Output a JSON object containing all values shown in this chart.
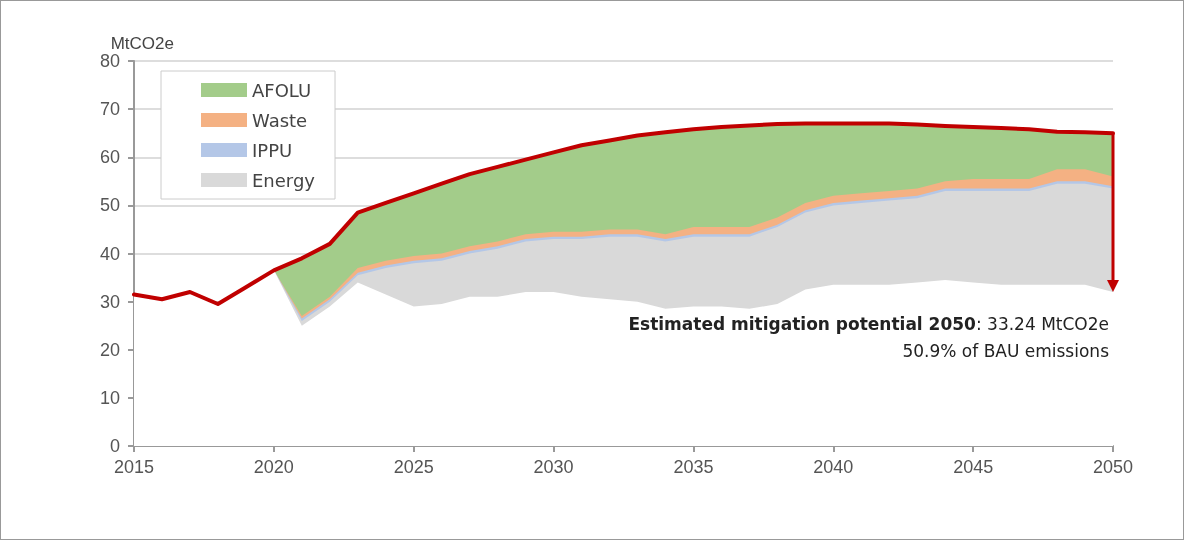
{
  "chart_data": {
    "type": "area",
    "ylabel": "MtCO2e",
    "stacked": true,
    "xlim": [
      2015,
      2050
    ],
    "xticks": [
      2015,
      2020,
      2025,
      2030,
      2035,
      2040,
      2045,
      2050
    ],
    "ylim": [
      0,
      80
    ],
    "yticks": [
      0,
      10,
      20,
      30,
      40,
      50,
      60,
      70,
      80
    ],
    "grid": "y",
    "legend": "top left",
    "x": [
      2015,
      2016,
      2017,
      2018,
      2019,
      2020,
      2021,
      2022,
      2023,
      2024,
      2025,
      2026,
      2027,
      2028,
      2029,
      2030,
      2031,
      2032,
      2033,
      2034,
      2035,
      2036,
      2037,
      2038,
      2039,
      2040,
      2041,
      2042,
      2043,
      2044,
      2045,
      2046,
      2047,
      2048,
      2049,
      2050
    ],
    "series": [
      {
        "color": "#ffffff",
        "values": [
          31.5,
          30.5,
          32,
          29.5,
          33,
          36.5,
          25,
          29,
          34,
          31.5,
          29,
          29.5,
          31,
          31,
          32,
          32,
          31,
          30.5,
          30,
          28.5,
          29,
          29,
          28.5,
          29.5,
          32.5,
          33.5,
          33.5,
          33.5,
          34,
          34.5,
          34,
          33.5,
          33.5,
          33.5,
          33.5,
          32
        ]
      },
      {
        "name": "Energy",
        "color": "#d9d9d9",
        "values": [
          0,
          0,
          0,
          0,
          0,
          0,
          1,
          1,
          1.5,
          5.5,
          9,
          9,
          9,
          10,
          10.5,
          11,
          12,
          13,
          13.5,
          14,
          14.5,
          14.5,
          15,
          16,
          16,
          16.5,
          17,
          17.5,
          17.5,
          18.5,
          19,
          19.5,
          19.5,
          21,
          21,
          21.5
        ]
      },
      {
        "name": "IPPU",
        "color": "#b4c7e7",
        "values": [
          0,
          0,
          0,
          0,
          0,
          0,
          0.5,
          0.5,
          0.5,
          0.5,
          0.5,
          0.5,
          0.5,
          0.5,
          0.5,
          0.5,
          0.5,
          0.5,
          0.5,
          0.5,
          0.5,
          0.5,
          0.5,
          0.5,
          0.5,
          0.5,
          0.5,
          0.5,
          0.5,
          0.5,
          0.5,
          0.5,
          0.5,
          0.5,
          0.5,
          0.5
        ]
      },
      {
        "name": "Waste",
        "color": "#f4b183",
        "values": [
          0,
          0,
          0,
          0,
          0,
          0,
          0.5,
          0.5,
          1,
          1,
          1,
          1,
          1,
          1,
          1,
          1,
          1,
          1,
          1,
          1,
          1.5,
          1.5,
          1.5,
          1.5,
          1.5,
          1.5,
          1.5,
          1.5,
          1.5,
          1.5,
          2,
          2,
          2,
          2.5,
          2.5,
          2
        ]
      },
      {
        "name": "AFOLU",
        "color": "#a3cc8a",
        "values": [
          0,
          0,
          0,
          0,
          0,
          0,
          12,
          11,
          11.5,
          12,
          13,
          14.5,
          15,
          15.5,
          15.5,
          16.5,
          18,
          18.5,
          19.5,
          21.2,
          20.3,
          20.8,
          21.1,
          19.4,
          16.5,
          15,
          14.5,
          14,
          13.3,
          11.5,
          10.8,
          10.6,
          10.3,
          7.8,
          7.7,
          9
        ]
      },
      {
        "type": "line",
        "color": "#c00000",
        "line_style": "solid",
        "marker": "none",
        "values": [
          31.5,
          30.5,
          32,
          29.5,
          33,
          36.5,
          39,
          42,
          48.5,
          50.5,
          52.5,
          54.5,
          56.5,
          58,
          59.5,
          61,
          62.5,
          63.5,
          64.5,
          65.2,
          65.8,
          66.3,
          66.6,
          66.9,
          67,
          67,
          67,
          67,
          66.8,
          66.5,
          66.3,
          66.1,
          65.8,
          65.3,
          65.2,
          65
        ]
      }
    ],
    "annotations": [
      "Estimated mitigation potential 2050: 33.24 MtCO2e",
      "50.9% of BAU emissions"
    ]
  }
}
